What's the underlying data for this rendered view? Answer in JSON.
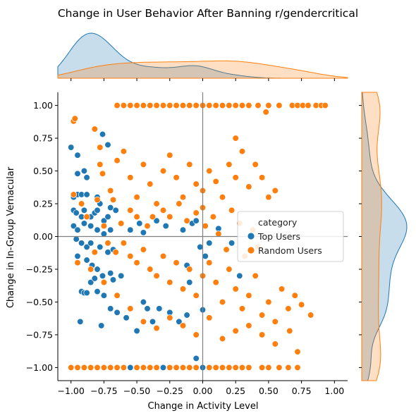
{
  "chart_data": {
    "type": "scatter",
    "title": "Change in User Behavior After Banning r/gendercritical",
    "xlabel": "Change in Activity Level",
    "ylabel": "Change in In-Group Vernacular",
    "xlim": [
      -1.1,
      1.1
    ],
    "ylim": [
      -1.1,
      1.1
    ],
    "x_ticks": [
      "−1.00",
      "−0.75",
      "−0.50",
      "−0.25",
      "0.00",
      "0.25",
      "0.50",
      "0.75",
      "1.00"
    ],
    "y_ticks": [
      "−1.00",
      "−0.75",
      "−0.50",
      "−0.25",
      "0.00",
      "0.25",
      "0.50",
      "0.75",
      "1.00"
    ],
    "x_tick_values": [
      -1,
      -0.75,
      -0.5,
      -0.25,
      0,
      0.25,
      0.5,
      0.75,
      1
    ],
    "y_tick_values": [
      -1,
      -0.75,
      -0.5,
      -0.25,
      0,
      0.25,
      0.5,
      0.75,
      1
    ],
    "reference_lines": {
      "x": 0,
      "y": 0
    },
    "marginal_plots": "kde",
    "legend": {
      "title": "category",
      "placement": "center-right",
      "entries": [
        "Top Users",
        "Random Users"
      ]
    },
    "series": [
      {
        "name": "Top Users",
        "color": "#1f77b4",
        "points": [
          [
            -1.0,
            0.68
          ],
          [
            -0.97,
            0.9
          ],
          [
            -0.95,
            0.62
          ],
          [
            -0.95,
            0.48
          ],
          [
            -0.9,
            0.5
          ],
          [
            -0.88,
            0.45
          ],
          [
            -0.76,
            0.78
          ],
          [
            -0.72,
            0.7
          ],
          [
            -0.98,
            0.3
          ],
          [
            -0.95,
            0.32
          ],
          [
            -0.92,
            0.32
          ],
          [
            -0.88,
            0.32
          ],
          [
            -0.8,
            0.3
          ],
          [
            -0.78,
            0.25
          ],
          [
            -0.98,
            0.2
          ],
          [
            -0.96,
            0.18
          ],
          [
            -0.92,
            0.15
          ],
          [
            -0.9,
            0.2
          ],
          [
            -0.85,
            0.15
          ],
          [
            -0.82,
            0.18
          ],
          [
            -0.8,
            0.2
          ],
          [
            -0.75,
            0.12
          ],
          [
            -0.72,
            0.15
          ],
          [
            -0.7,
            0.22
          ],
          [
            -0.66,
            0.2
          ],
          [
            -0.98,
            0.08
          ],
          [
            -0.95,
            0.05
          ],
          [
            -0.9,
            0.1
          ],
          [
            -0.85,
            0.08
          ],
          [
            -0.8,
            0.05
          ],
          [
            -0.75,
            0.02
          ],
          [
            -0.7,
            0.05
          ],
          [
            -0.96,
            -0.02
          ],
          [
            -0.92,
            -0.05
          ],
          [
            -0.88,
            -0.08
          ],
          [
            -0.85,
            -0.05
          ],
          [
            -0.78,
            -0.08
          ],
          [
            -0.72,
            -0.12
          ],
          [
            -0.68,
            -0.1
          ],
          [
            -0.95,
            -0.15
          ],
          [
            -0.88,
            -0.18
          ],
          [
            -0.84,
            -0.22
          ],
          [
            -0.8,
            -0.25
          ],
          [
            -0.76,
            -0.3
          ],
          [
            -0.7,
            -0.28
          ],
          [
            -0.68,
            -0.33
          ],
          [
            -0.62,
            -0.3
          ],
          [
            -0.85,
            -0.35
          ],
          [
            -0.82,
            -0.32
          ],
          [
            -0.8,
            -0.42
          ],
          [
            -0.75,
            -0.45
          ],
          [
            -0.92,
            -0.42
          ],
          [
            -0.9,
            -0.43
          ],
          [
            -0.88,
            -0.43
          ],
          [
            -0.93,
            -0.65
          ],
          [
            -0.77,
            -0.68
          ],
          [
            -0.7,
            -0.55
          ],
          [
            -0.65,
            -0.58
          ],
          [
            -0.58,
            -0.62
          ],
          [
            -0.5,
            -0.72
          ],
          [
            -0.45,
            -0.5
          ],
          [
            -0.42,
            -0.55
          ],
          [
            -0.38,
            -0.65
          ],
          [
            -0.33,
            -0.55
          ],
          [
            -0.25,
            -0.58
          ],
          [
            -0.18,
            -0.65
          ],
          [
            -0.12,
            -0.6
          ],
          [
            -0.55,
            0.05
          ],
          [
            -0.48,
            0.1
          ],
          [
            -0.45,
            0.03
          ],
          [
            -0.35,
            0.12
          ],
          [
            -0.28,
            0.08
          ],
          [
            -0.15,
            0.05
          ],
          [
            -0.08,
            0.1
          ],
          [
            -0.05,
            0.12
          ],
          [
            -0.02,
            -0.08
          ],
          [
            0.02,
            -0.15
          ],
          [
            0.05,
            -0.05
          ],
          [
            -0.12,
            -0.22
          ],
          [
            -0.1,
            -0.35
          ],
          [
            0.0,
            -0.56
          ],
          [
            -0.05,
            -0.93
          ],
          [
            0.28,
            -0.3
          ],
          [
            0.22,
            -0.05
          ],
          [
            0.12,
            0.06
          ],
          [
            -1.0,
            -1.0
          ],
          [
            -0.85,
            -1.0
          ],
          [
            -0.55,
            -1.0
          ],
          [
            -0.3,
            -1.0
          ],
          [
            0.0,
            -1.0
          ]
        ]
      },
      {
        "name": "Random Users",
        "color": "#ff7f0e",
        "points": [
          [
            -0.65,
            1.0
          ],
          [
            -0.6,
            1.0
          ],
          [
            -0.55,
            1.0
          ],
          [
            -0.5,
            1.0
          ],
          [
            -0.45,
            1.0
          ],
          [
            -0.4,
            1.0
          ],
          [
            -0.35,
            1.0
          ],
          [
            -0.3,
            1.0
          ],
          [
            -0.25,
            1.0
          ],
          [
            -0.2,
            1.0
          ],
          [
            -0.15,
            1.0
          ],
          [
            -0.1,
            1.0
          ],
          [
            -0.05,
            1.0
          ],
          [
            0.0,
            1.0
          ],
          [
            0.05,
            1.0
          ],
          [
            0.1,
            1.0
          ],
          [
            0.15,
            1.0
          ],
          [
            0.2,
            1.0
          ],
          [
            0.25,
            1.0
          ],
          [
            0.3,
            1.0
          ],
          [
            0.35,
            1.0
          ],
          [
            0.42,
            1.0
          ],
          [
            0.5,
            1.0
          ],
          [
            0.58,
            1.0
          ],
          [
            0.68,
            1.0
          ],
          [
            0.72,
            1.0
          ],
          [
            0.76,
            1.0
          ],
          [
            0.8,
            1.0
          ],
          [
            0.86,
            1.0
          ],
          [
            0.9,
            1.0
          ],
          [
            0.93,
            1.0
          ],
          [
            -1.0,
            -1.0
          ],
          [
            -0.95,
            -1.0
          ],
          [
            -0.9,
            -1.0
          ],
          [
            -0.85,
            -1.0
          ],
          [
            -0.8,
            -1.0
          ],
          [
            -0.75,
            -1.0
          ],
          [
            -0.7,
            -1.0
          ],
          [
            -0.65,
            -1.0
          ],
          [
            -0.6,
            -1.0
          ],
          [
            -0.5,
            -1.0
          ],
          [
            -0.45,
            -1.0
          ],
          [
            -0.4,
            -1.0
          ],
          [
            -0.35,
            -1.0
          ],
          [
            -0.25,
            -1.0
          ],
          [
            -0.2,
            -1.0
          ],
          [
            -0.15,
            -1.0
          ],
          [
            -0.1,
            -1.0
          ],
          [
            -0.05,
            -1.0
          ],
          [
            0.05,
            -1.0
          ],
          [
            0.1,
            -1.0
          ],
          [
            0.15,
            -1.0
          ],
          [
            0.2,
            -1.0
          ],
          [
            0.25,
            -1.0
          ],
          [
            0.3,
            -1.0
          ],
          [
            0.35,
            -1.0
          ],
          [
            0.45,
            -1.0
          ],
          [
            0.5,
            -1.0
          ],
          [
            0.58,
            -1.0
          ],
          [
            0.65,
            -1.0
          ],
          [
            0.72,
            -1.0
          ],
          [
            -0.98,
            0.88
          ],
          [
            -0.97,
            0.9
          ],
          [
            -0.82,
            0.82
          ],
          [
            -0.78,
            0.68
          ],
          [
            -0.76,
            0.48
          ],
          [
            -0.7,
            0.35
          ],
          [
            -0.65,
            0.58
          ],
          [
            -0.6,
            0.65
          ],
          [
            -0.55,
            0.45
          ],
          [
            -0.5,
            0.3
          ],
          [
            -0.45,
            0.55
          ],
          [
            -0.4,
            0.4
          ],
          [
            -0.35,
            0.25
          ],
          [
            -0.3,
            0.5
          ],
          [
            -0.25,
            0.62
          ],
          [
            -0.2,
            0.45
          ],
          [
            -0.15,
            0.3
          ],
          [
            -0.1,
            0.55
          ],
          [
            -0.05,
            0.4
          ],
          [
            0.0,
            0.35
          ],
          [
            0.05,
            0.5
          ],
          [
            0.1,
            0.42
          ],
          [
            0.15,
            0.3
          ],
          [
            0.2,
            0.55
          ],
          [
            0.25,
            0.45
          ],
          [
            0.3,
            0.65
          ],
          [
            0.35,
            0.38
          ],
          [
            0.4,
            0.55
          ],
          [
            0.45,
            0.45
          ],
          [
            0.48,
            0.95
          ],
          [
            0.5,
            0.3
          ],
          [
            0.55,
            0.35
          ],
          [
            0.25,
            0.75
          ],
          [
            0.0,
            0.22
          ],
          [
            -0.05,
            0.18
          ],
          [
            -0.12,
            0.12
          ],
          [
            -0.18,
            0.25
          ],
          [
            -0.25,
            0.15
          ],
          [
            -0.3,
            0.2
          ],
          [
            -0.38,
            0.15
          ],
          [
            -0.42,
            0.08
          ],
          [
            -0.5,
            0.15
          ],
          [
            -0.55,
            0.2
          ],
          [
            -0.62,
            0.1
          ],
          [
            -0.68,
            0.28
          ],
          [
            -0.98,
            0.32
          ],
          [
            -0.92,
            0.25
          ],
          [
            -0.88,
            0.15
          ],
          [
            -0.8,
            0.28
          ],
          [
            -0.75,
            0.08
          ],
          [
            -0.72,
            -0.05
          ],
          [
            -0.66,
            -0.12
          ],
          [
            -0.6,
            -0.05
          ],
          [
            -0.55,
            -0.15
          ],
          [
            -0.5,
            -0.2
          ],
          [
            -0.45,
            -0.1
          ],
          [
            -0.4,
            -0.25
          ],
          [
            -0.35,
            -0.3
          ],
          [
            -0.3,
            -0.15
          ],
          [
            -0.25,
            -0.35
          ],
          [
            -0.2,
            -0.2
          ],
          [
            -0.15,
            -0.4
          ],
          [
            -0.1,
            -0.25
          ],
          [
            -0.05,
            -0.45
          ],
          [
            0.0,
            -0.3
          ],
          [
            0.05,
            -0.2
          ],
          [
            0.1,
            -0.35
          ],
          [
            0.15,
            -0.5
          ],
          [
            0.2,
            -0.25
          ],
          [
            0.25,
            -0.4
          ],
          [
            0.3,
            -0.55
          ],
          [
            0.35,
            -0.45
          ],
          [
            0.4,
            -0.3
          ],
          [
            0.45,
            -0.6
          ],
          [
            0.5,
            -0.5
          ],
          [
            0.55,
            -0.65
          ],
          [
            0.6,
            -0.4
          ],
          [
            0.65,
            -0.55
          ],
          [
            0.7,
            -0.45
          ],
          [
            0.75,
            -0.52
          ],
          [
            0.82,
            -0.6
          ],
          [
            0.72,
            -0.88
          ],
          [
            0.66,
            -0.72
          ],
          [
            0.55,
            -0.82
          ],
          [
            0.45,
            -0.75
          ],
          [
            0.35,
            -0.68
          ],
          [
            0.25,
            -0.72
          ],
          [
            0.15,
            -0.78
          ],
          [
            0.05,
            -0.62
          ],
          [
            -0.05,
            -0.75
          ],
          [
            -0.15,
            -0.68
          ],
          [
            -0.25,
            -0.62
          ],
          [
            -0.35,
            -0.7
          ],
          [
            -0.45,
            -0.65
          ],
          [
            -0.55,
            -0.55
          ],
          [
            -0.65,
            -0.45
          ],
          [
            -0.75,
            -0.35
          ],
          [
            -0.85,
            -0.25
          ],
          [
            -0.95,
            -0.2
          ],
          [
            -0.78,
            0.55
          ],
          [
            -0.82,
            -0.12
          ],
          [
            0.02,
            0.08
          ],
          [
            0.08,
            0.15
          ],
          [
            0.12,
            0.02
          ],
          [
            0.18,
            -0.1
          ],
          [
            0.22,
            0.2
          ],
          [
            0.28,
            0.1
          ],
          [
            0.32,
            -0.15
          ],
          [
            0.38,
            0.05
          ],
          [
            0.42,
            -0.08
          ]
        ]
      }
    ]
  }
}
